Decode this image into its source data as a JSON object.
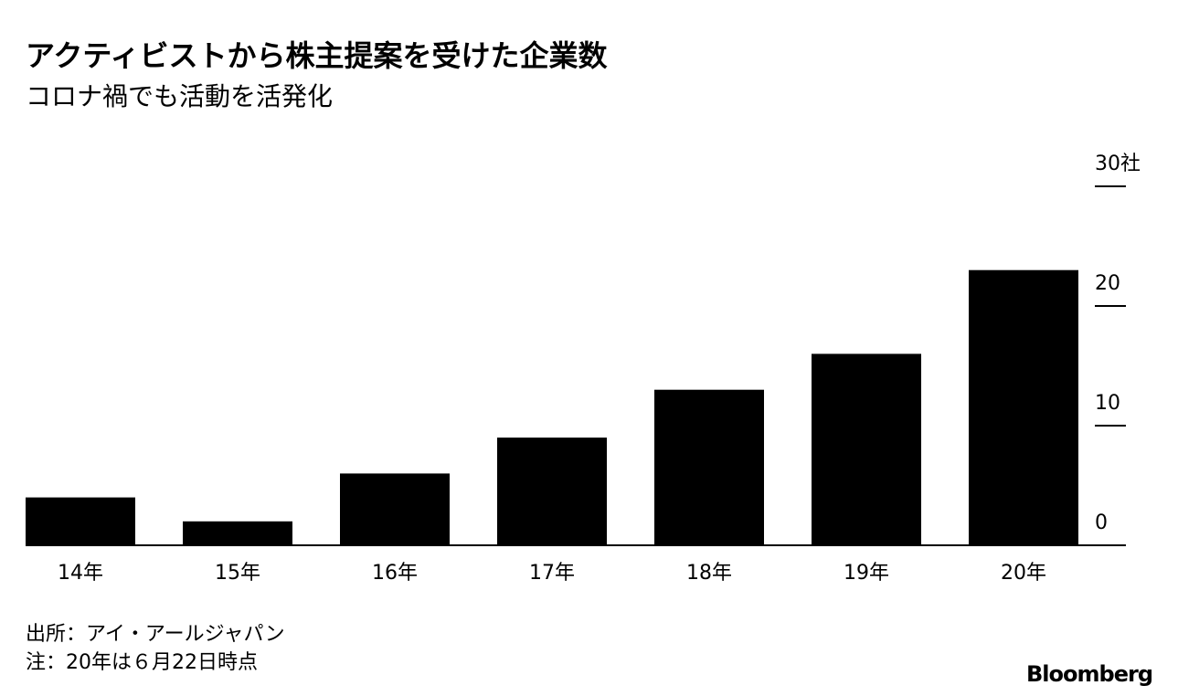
{
  "chart_data": {
    "type": "bar",
    "title": "アクティビストから株主提案を受けた企業数",
    "subtitle": "コロナ禍でも活動を活発化",
    "categories": [
      "14年",
      "15年",
      "16年",
      "17年",
      "18年",
      "19年",
      "20年"
    ],
    "values": [
      4,
      2,
      6,
      9,
      13,
      16,
      23
    ],
    "color": "#000000",
    "ylim": [
      0,
      30
    ],
    "yticks": [
      0,
      10,
      20,
      {
        "value": 30,
        "label": "30社"
      }
    ],
    "source": "出所：アイ・アールジャパン",
    "note": "注：20年は６月22日時点",
    "brand": "Bloomberg"
  }
}
